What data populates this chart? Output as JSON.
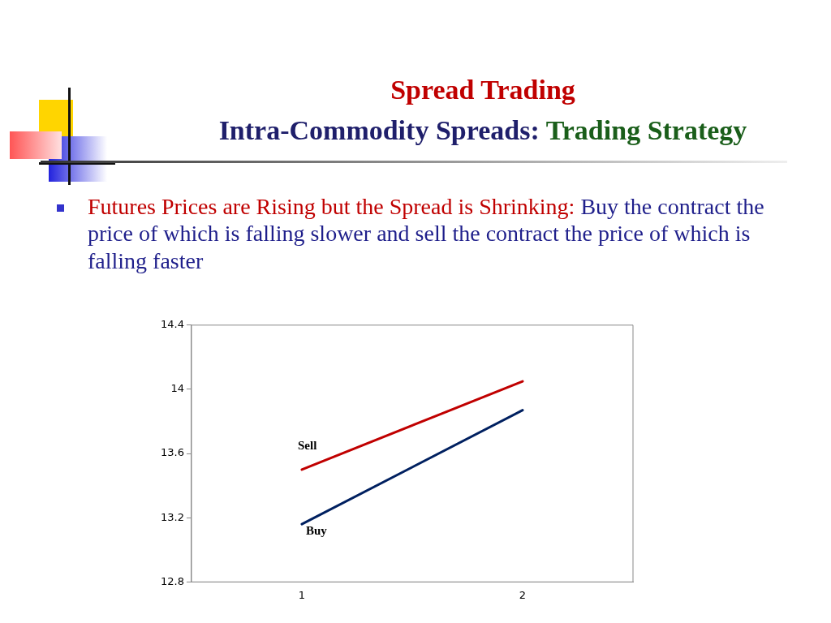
{
  "chart_data": {
    "type": "line",
    "title": "Spread Trading",
    "subtitle": "Intra-Commodity Spreads: Trading Strategy",
    "annotations": [
      "Futures Prices are Rising but the Spread is Shrinking: Buy the contract the price of which is falling slower and sell the contract the price of which is falling faster"
    ],
    "categories": [
      "1",
      "2"
    ],
    "series": [
      {
        "name": "Sell",
        "color": "#c00000",
        "values": [
          13.5,
          14.05
        ]
      },
      {
        "name": "Buy",
        "color": "#002060",
        "values": [
          13.16,
          13.87
        ]
      }
    ],
    "ylim": [
      12.8,
      14.4
    ],
    "yticks": [
      12.8,
      13.2,
      13.6,
      14,
      14.4
    ],
    "grid": false,
    "legend": false,
    "marker": "none",
    "line_style": "solid"
  }
}
